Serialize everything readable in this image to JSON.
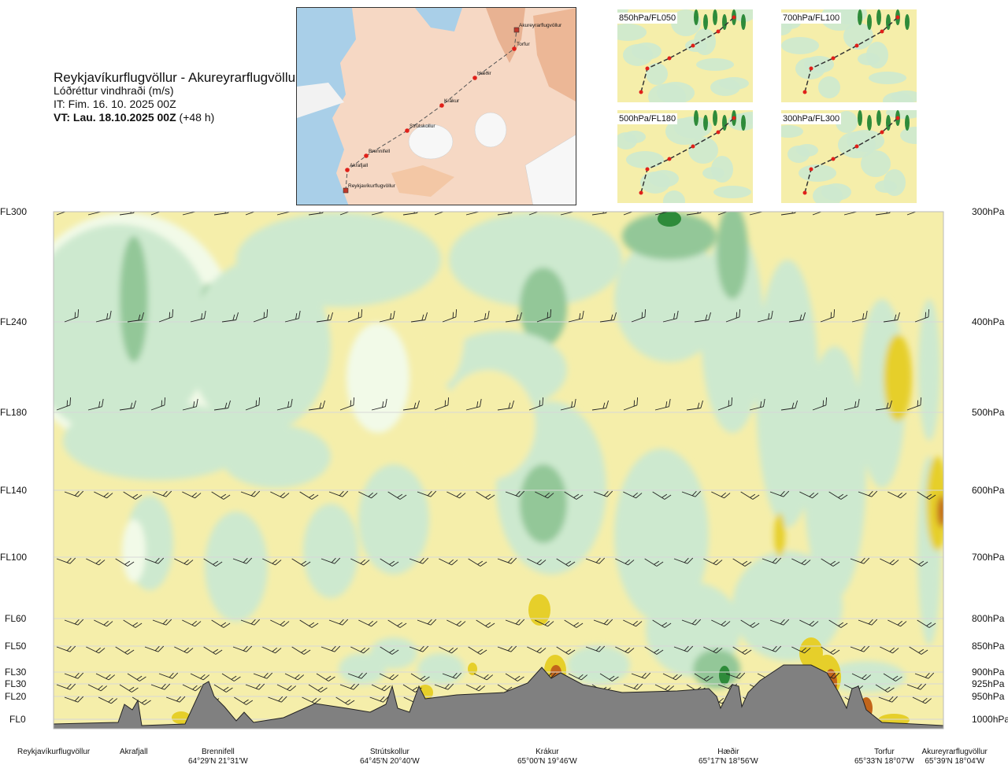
{
  "title": {
    "route": "Reykjavíkurflugvöllur - Akureyrarflugvöllur",
    "variable": "Lóðréttur vindhraði (m/s)",
    "it": "IT: Fim. 16. 10. 2025 00Z",
    "vt_bold": "VT: Lau. 18.10.2025 00Z",
    "vt_rest": "(+48 h)"
  },
  "map_inset": {
    "stations": [
      "Akureyrarflugvöllur",
      "Torfur",
      "Hæðir",
      "Krákur",
      "Strútskollur",
      "Brennifell",
      "Akrafjall",
      "Reykjavíkurflugvöllur"
    ]
  },
  "mini_maps": [
    "850hPa/FL050",
    "700hPa/FL100",
    "500hPa/FL180",
    "300hPa/FL300"
  ],
  "chart_data": {
    "type": "heatmap",
    "title": "Lóðréttur vindhraði (m/s)",
    "left_axis": [
      "FL300",
      "FL240",
      "FL180",
      "FL140",
      "FL100",
      "FL60",
      "FL50",
      "FL30",
      "FL30",
      "FL20",
      "FL0"
    ],
    "right_axis": [
      "300hPa",
      "400hPa",
      "500hPa",
      "600hPa",
      "700hPa",
      "800hPa",
      "850hPa",
      "900hPa",
      "925hPa",
      "950hPa",
      "1000hPa"
    ],
    "pressure_levels_hpa": [
      300,
      400,
      500,
      600,
      700,
      800,
      850,
      900,
      925,
      950,
      1000
    ],
    "locations": [
      {
        "name": "Reykjavíkurflugvöllur",
        "coord": ""
      },
      {
        "name": "Akrafjall",
        "coord": ""
      },
      {
        "name": "Brennifell",
        "coord": "64°29'N 21°31'W"
      },
      {
        "name": "Strútskollur",
        "coord": "64°45'N 20°40'W"
      },
      {
        "name": "Krákur",
        "coord": "65°00'N 19°46'W"
      },
      {
        "name": "Hæðir",
        "coord": "65°17'N 18°56'W"
      },
      {
        "name": "Torfur",
        "coord": "65°33'N 18°07'W"
      },
      {
        "name": "Akureyrarflugvöllur",
        "coord": "65°39'N 18°04'W"
      }
    ],
    "colors": {
      "sink_strong": "#2e8b3a",
      "sink_mid": "#93c798",
      "sink_weak": "#cde9cf",
      "neutral": "#f2fae8",
      "rise_weak": "#f5eeaa",
      "rise_mid": "#e6cf2a",
      "rise_strong": "#c2651a",
      "terrain": "#808080"
    }
  }
}
